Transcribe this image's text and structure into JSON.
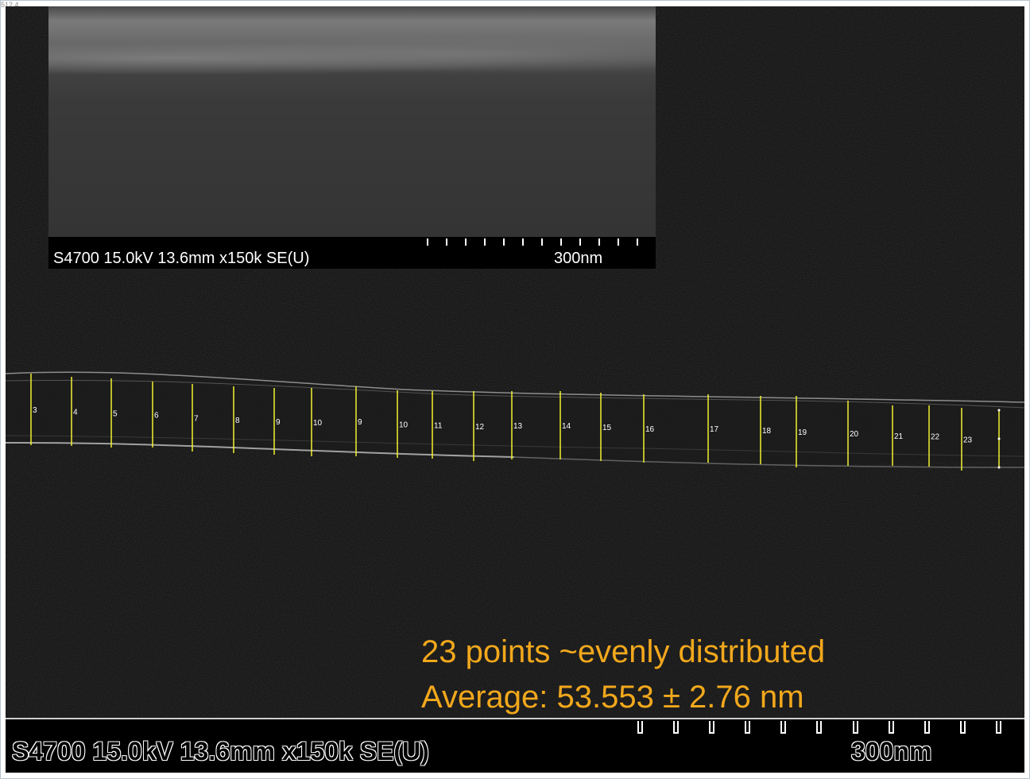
{
  "corner_text": "512.4",
  "inset": {
    "label": "S4700 15.0kV 13.6mm x150k SE(U)",
    "scale": "300nm"
  },
  "measurement_points": [
    "3",
    "4",
    "5",
    "6",
    "7",
    "8",
    "9",
    "10",
    "9",
    "10",
    "11",
    "12",
    "13",
    "14",
    "15",
    "16",
    "17",
    "18",
    "19",
    "20",
    "21",
    "22",
    "23"
  ],
  "caption": {
    "line1": "23 points ~evenly distributed",
    "line2": "Average: 53.553 ± 2.76 nm"
  },
  "footer": {
    "label": "S4700 15.0kV 13.6mm x150k SE(U)",
    "scale": "300nm"
  },
  "colors": {
    "caption": "#f2a81c",
    "measure_line": "#f2f230",
    "background": "#0d0d0d"
  }
}
